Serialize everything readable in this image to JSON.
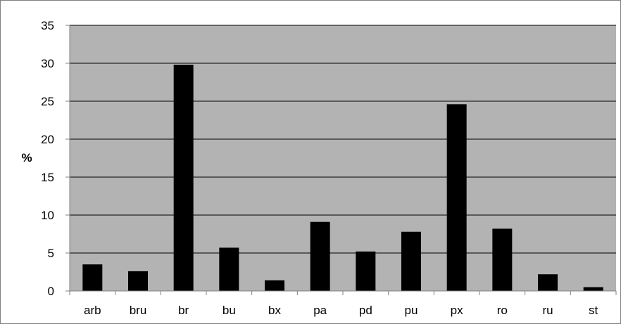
{
  "chart_data": {
    "type": "bar",
    "title": "",
    "xlabel": "",
    "ylabel": "%",
    "categories": [
      "arb",
      "bru",
      "br",
      "bu",
      "bx",
      "pa",
      "pd",
      "pu",
      "px",
      "ro",
      "ru",
      "st"
    ],
    "values": [
      3.5,
      2.6,
      29.8,
      5.7,
      1.4,
      9.1,
      5.2,
      7.8,
      24.6,
      8.2,
      2.2,
      0.5
    ],
    "ylim": [
      0,
      35
    ],
    "yticks": [
      0,
      5,
      10,
      15,
      20,
      25,
      30,
      35
    ],
    "grid": true,
    "legend": "none",
    "colors": {
      "bar": "#000000",
      "plot_background": "#b3b3b3",
      "gridline": "#000000",
      "axis": "#808080",
      "background": "#ffffff"
    }
  }
}
